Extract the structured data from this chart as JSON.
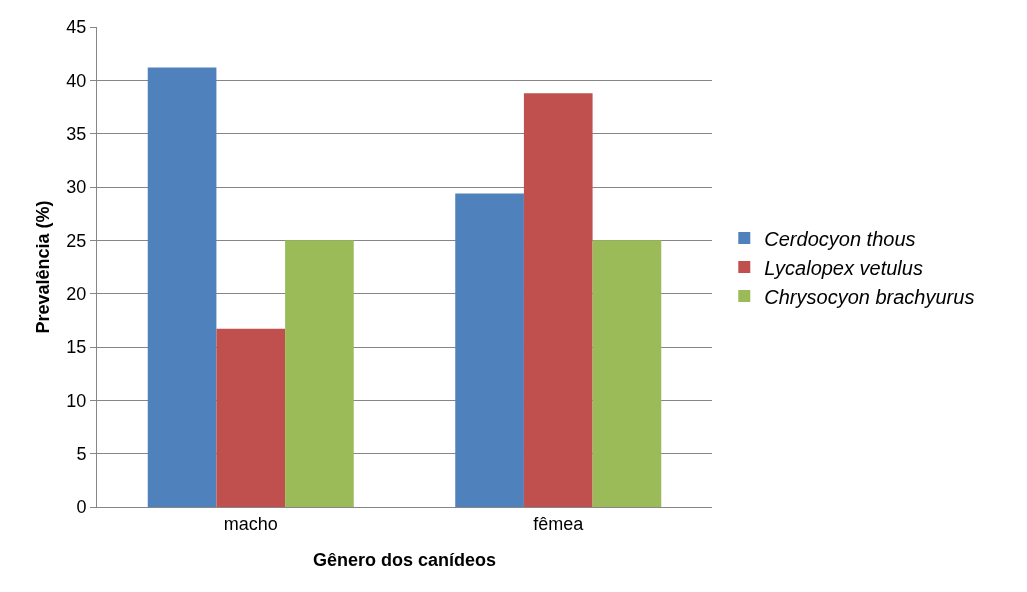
{
  "chart_data": {
    "type": "bar",
    "xlabel": "Gênero dos canídeos",
    "ylabel": "Prevalência (%)",
    "categories": [
      "macho",
      "fêmea"
    ],
    "series": [
      {
        "name": "Cerdocyon thous",
        "color": "#4f81bd",
        "values": [
          41.2,
          29.4
        ]
      },
      {
        "name": "Lycalopex vetulus",
        "color": "#c0504d",
        "values": [
          16.7,
          38.8
        ]
      },
      {
        "name": "Chrysocyon brachyurus",
        "color": "#9bbb59",
        "values": [
          25,
          25
        ]
      }
    ],
    "ylim": [
      0,
      45
    ],
    "yticks": [
      0,
      5,
      10,
      15,
      20,
      25,
      30,
      35,
      40,
      45
    ],
    "grid": "y",
    "legend": "right"
  }
}
